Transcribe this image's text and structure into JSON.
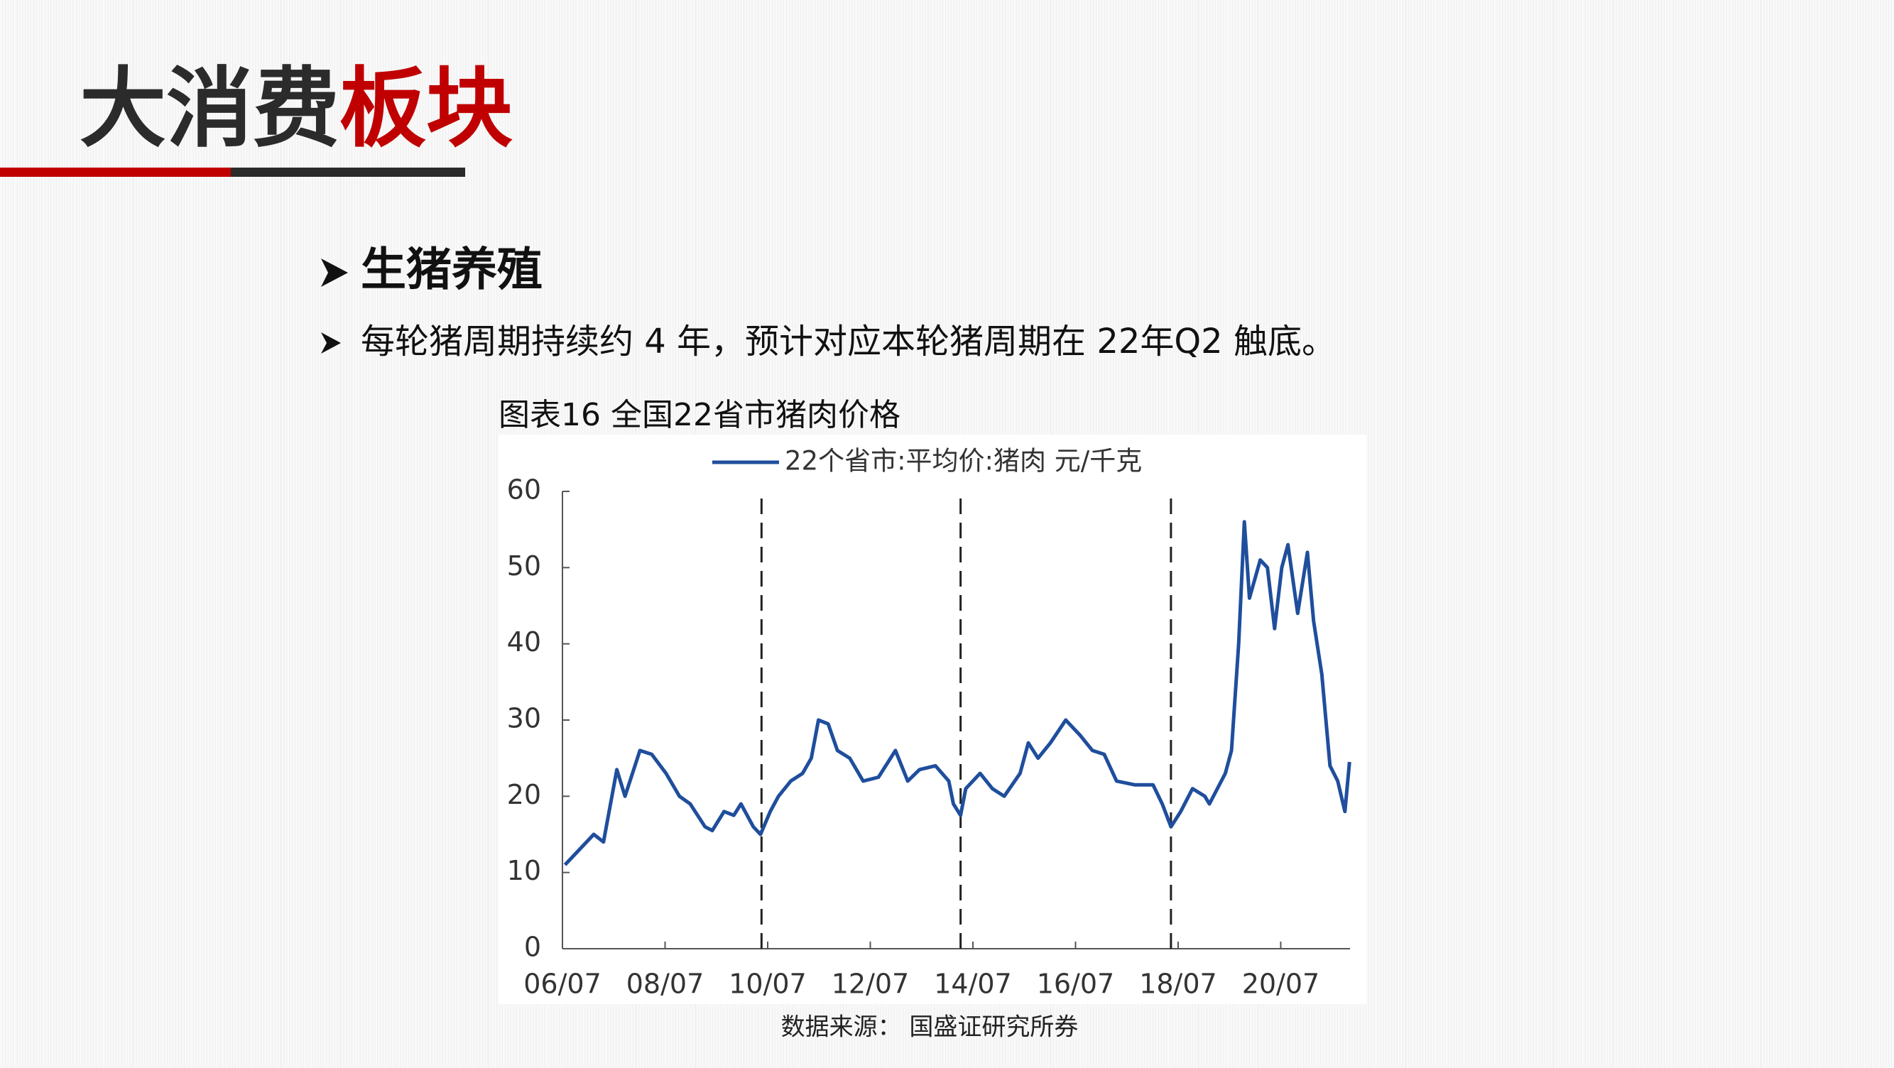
{
  "header": {
    "title_dark": "大消费",
    "title_red": "板块"
  },
  "bullets": [
    "生猪养殖",
    "每轮猪周期持续约 4 年，预计对应本轮猪周期在 22年Q2 触底。"
  ],
  "chart_data": {
    "type": "line",
    "title": "图表16 全国22省市猪肉价格",
    "source": "数据来源： 国盛证研究所券",
    "x": [
      2006.55,
      2006.83,
      2007.11,
      2007.3,
      2007.56,
      2007.72,
      2008.01,
      2008.24,
      2008.52,
      2008.78,
      2008.99,
      2009.28,
      2009.42,
      2009.65,
      2009.84,
      2009.98,
      2010.22,
      2010.36,
      2010.55,
      2010.71,
      2010.95,
      2011.18,
      2011.35,
      2011.49,
      2011.68,
      2011.86,
      2012.1,
      2012.36,
      2012.66,
      2012.99,
      2013.23,
      2013.46,
      2013.77,
      2014.03,
      2014.12,
      2014.26,
      2014.36,
      2014.64,
      2014.88,
      2015.11,
      2015.42,
      2015.58,
      2015.77,
      2016.01,
      2016.31,
      2016.59,
      2016.83,
      2017.06,
      2017.3,
      2017.65,
      2018.01,
      2018.19,
      2018.36,
      2018.55,
      2018.78,
      2019.02,
      2019.11,
      2019.42,
      2019.54,
      2019.68,
      2019.79,
      2019.89,
      2020.1,
      2020.24,
      2020.38,
      2020.52,
      2020.64,
      2020.83,
      2021.02,
      2021.14,
      2021.3,
      2021.46,
      2021.61,
      2021.75,
      2021.84
    ],
    "series": [
      {
        "name": "22个省市:平均价:猪肉 元/千克",
        "color": "#1f4e9c",
        "values": [
          11,
          13,
          15,
          14,
          23.5,
          20,
          26,
          25.5,
          23,
          20,
          19,
          16,
          15.5,
          18,
          17.5,
          19,
          16,
          15,
          18,
          20,
          22,
          23,
          25,
          30,
          29.5,
          26,
          25,
          22,
          22.5,
          26,
          22,
          23.5,
          24,
          22,
          19,
          17.5,
          21,
          23,
          21,
          20,
          23,
          27,
          25,
          27,
          30,
          28,
          26,
          25.5,
          22,
          21.5,
          21.5,
          19,
          16,
          18,
          21,
          20,
          19,
          23,
          26,
          40,
          56,
          46,
          51,
          50,
          42,
          50,
          53,
          44,
          52,
          43,
          36,
          24,
          22,
          18,
          24.5
        ]
      }
    ],
    "xlim": [
      2006.5,
      2021.85
    ],
    "xticks": [
      {
        "value": 2006.5,
        "label": "06/07"
      },
      {
        "value": 2008.5,
        "label": "08/07"
      },
      {
        "value": 2010.5,
        "label": "10/07"
      },
      {
        "value": 2012.5,
        "label": "12/07"
      },
      {
        "value": 2014.5,
        "label": "14/07"
      },
      {
        "value": 2016.5,
        "label": "16/07"
      },
      {
        "value": 2018.5,
        "label": "18/07"
      },
      {
        "value": 2020.5,
        "label": "20/07"
      }
    ],
    "ylim": [
      0,
      60
    ],
    "yticks": [
      0,
      10,
      20,
      30,
      40,
      50,
      60
    ],
    "vlines": [
      2010.38,
      2014.26,
      2018.36
    ]
  }
}
